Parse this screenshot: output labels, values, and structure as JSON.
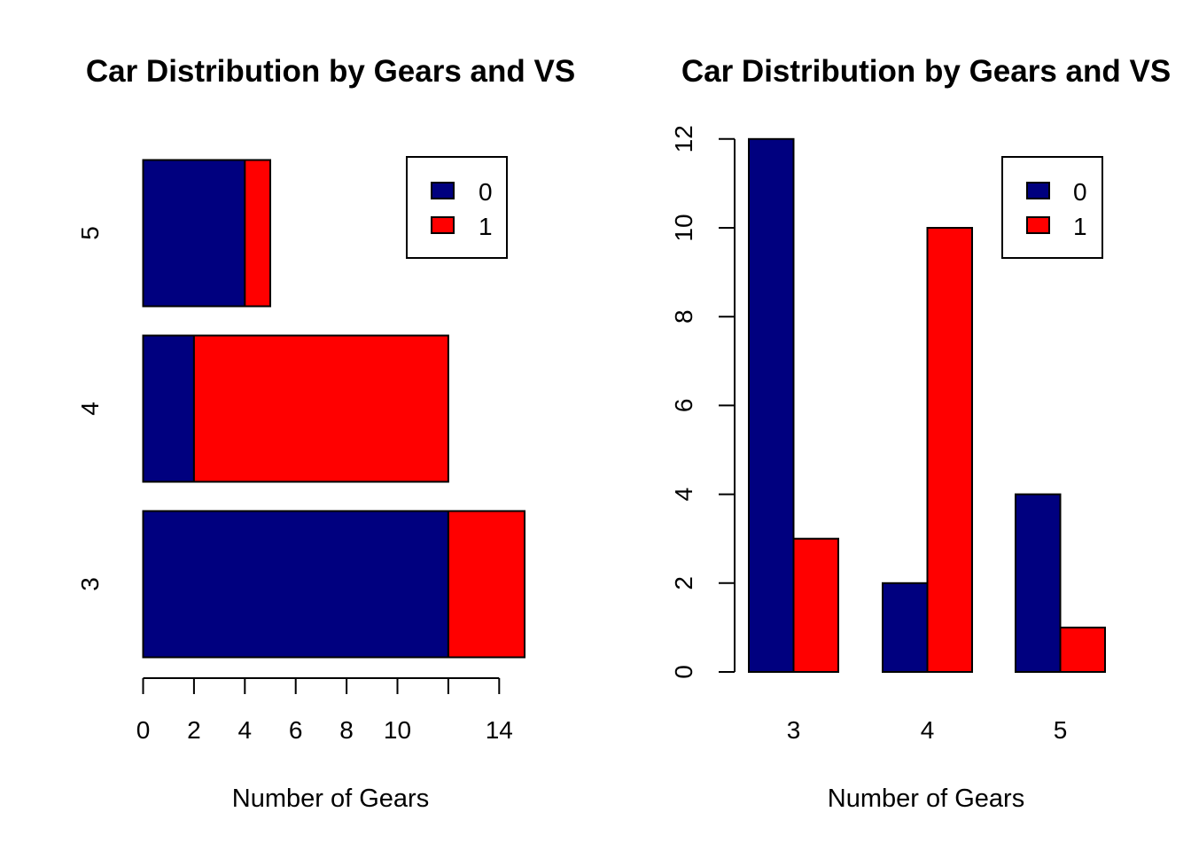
{
  "colors": {
    "vs0": "#00007f",
    "vs1": "#ff0000"
  },
  "chart_data": [
    {
      "type": "bar",
      "orientation": "horizontal",
      "stacked": true,
      "title": "Car Distribution by Gears and VS",
      "xlabel": "Number of Gears",
      "ylabel": "",
      "categories": [
        "3",
        "4",
        "5"
      ],
      "series": [
        {
          "name": "0",
          "values": [
            12,
            2,
            4
          ]
        },
        {
          "name": "1",
          "values": [
            3,
            10,
            1
          ]
        }
      ],
      "xticks": [
        "0",
        "2",
        "4",
        "6",
        "8",
        "10",
        "14"
      ],
      "xlim": [
        0,
        15
      ],
      "legend": [
        "0",
        "1"
      ],
      "legend_position": "top-right"
    },
    {
      "type": "bar",
      "orientation": "vertical",
      "stacked": false,
      "title": "Car Distribution by Gears and VS",
      "xlabel": "Number of Gears",
      "ylabel": "",
      "categories": [
        "3",
        "4",
        "5"
      ],
      "series": [
        {
          "name": "0",
          "values": [
            12,
            2,
            4
          ]
        },
        {
          "name": "1",
          "values": [
            3,
            10,
            1
          ]
        }
      ],
      "yticks": [
        "0",
        "2",
        "4",
        "6",
        "8",
        "10",
        "12"
      ],
      "ylim": [
        0,
        12
      ],
      "legend": [
        "0",
        "1"
      ],
      "legend_position": "top-right"
    }
  ]
}
